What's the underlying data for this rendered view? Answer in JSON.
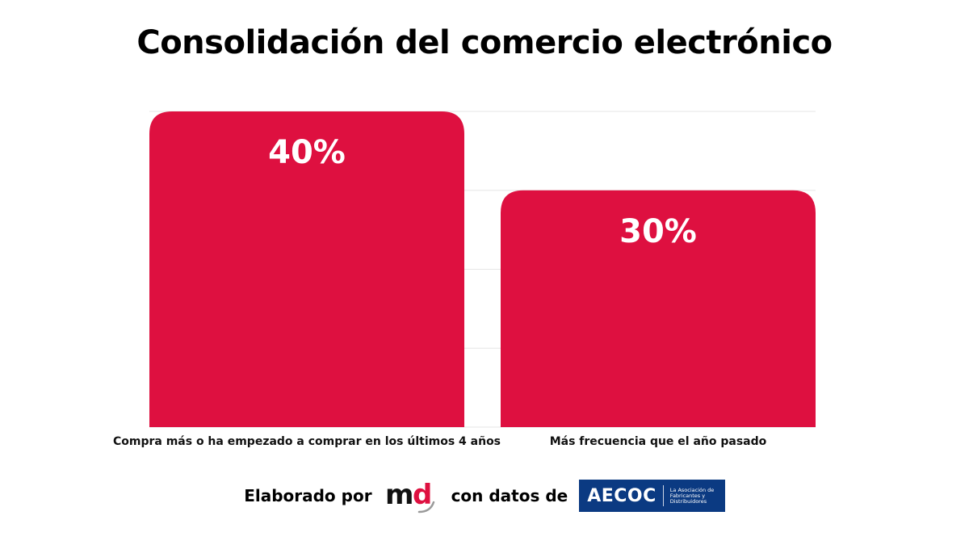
{
  "title": "Consolidación del comercio electrónico",
  "chart_data": {
    "type": "bar",
    "categories": [
      "Compra más o ha empezado a comprar en los últimos 4 años",
      "Más frecuencia que el año pasado"
    ],
    "values": [
      40,
      30
    ],
    "data_labels": [
      "40%",
      "30%"
    ],
    "ylim": [
      0,
      40
    ],
    "grid": true,
    "bar_color": "#DE1040"
  },
  "footer": {
    "prefix": "Elaborado por",
    "md_logo": "md",
    "middle": "con datos de",
    "aecoc_logo": {
      "name": "AECOC",
      "tagline": "La Asociación de Fabricantes y Distribuidores"
    }
  }
}
